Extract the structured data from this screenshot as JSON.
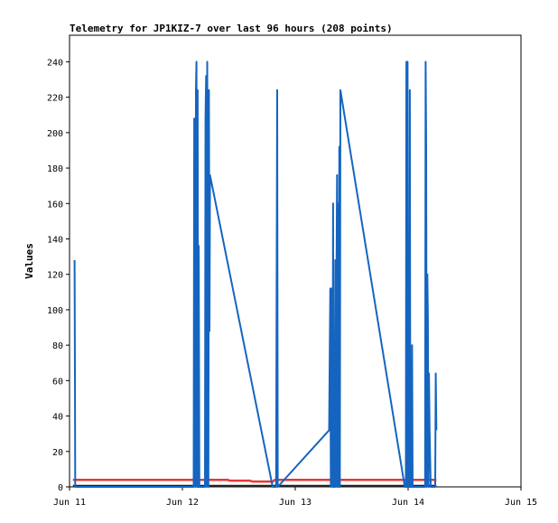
{
  "chart_data": {
    "type": "line",
    "title": "Telemetry for JP1KIZ-7 over last 96 hours (208 points)",
    "xlabel": "",
    "ylabel": "Values",
    "xlim": [
      "Jun 11",
      "Jun 15"
    ],
    "ylim": [
      0,
      255
    ],
    "x_ticks": [
      "Jun 11",
      "Jun 12",
      "Jun 13",
      "Jun 14",
      "Jun 15"
    ],
    "y_ticks": [
      0,
      20,
      40,
      60,
      80,
      100,
      120,
      140,
      160,
      180,
      200,
      220,
      240
    ],
    "grid": false,
    "legend": "none",
    "x_unit": "days",
    "series": [
      {
        "color": "#1565c0",
        "points": [
          [
            0.045,
            128
          ],
          [
            0.048,
            64
          ],
          [
            0.05,
            0
          ],
          [
            1.1,
            0
          ],
          [
            1.105,
            208
          ],
          [
            1.11,
            120
          ],
          [
            1.115,
            0
          ],
          [
            1.12,
            224
          ],
          [
            1.125,
            240
          ],
          [
            1.13,
            0
          ],
          [
            1.135,
            224
          ],
          [
            1.14,
            0
          ],
          [
            1.145,
            136
          ],
          [
            1.15,
            0
          ],
          [
            1.2,
            0
          ],
          [
            1.205,
            208
          ],
          [
            1.21,
            232
          ],
          [
            1.215,
            0
          ],
          [
            1.22,
            240
          ],
          [
            1.225,
            120
          ],
          [
            1.23,
            0
          ],
          [
            1.235,
            224
          ],
          [
            1.24,
            88
          ],
          [
            1.245,
            176
          ],
          [
            1.8,
            0
          ],
          [
            1.83,
            0
          ],
          [
            1.835,
            112
          ],
          [
            1.84,
            224
          ],
          [
            1.845,
            0
          ],
          [
            2.3,
            32
          ],
          [
            2.31,
            112
          ],
          [
            2.315,
            0
          ],
          [
            2.32,
            112
          ],
          [
            2.33,
            0
          ],
          [
            2.335,
            160
          ],
          [
            2.34,
            0
          ],
          [
            2.35,
            0
          ],
          [
            2.355,
            128
          ],
          [
            2.36,
            0
          ],
          [
            2.365,
            112
          ],
          [
            2.37,
            176
          ],
          [
            2.375,
            0
          ],
          [
            2.38,
            160
          ],
          [
            2.385,
            0
          ],
          [
            2.39,
            192
          ],
          [
            2.395,
            0
          ],
          [
            2.4,
            224
          ],
          [
            2.97,
            0
          ],
          [
            2.98,
            0
          ],
          [
            2.985,
            240
          ],
          [
            2.99,
            0
          ],
          [
            2.995,
            240
          ],
          [
            3.0,
            0
          ],
          [
            3.005,
            96
          ],
          [
            3.01,
            0
          ],
          [
            3.015,
            224
          ],
          [
            3.02,
            0
          ],
          [
            3.03,
            0
          ],
          [
            3.035,
            80
          ],
          [
            3.04,
            0
          ],
          [
            3.15,
            0
          ],
          [
            3.155,
            240
          ],
          [
            3.16,
            192
          ],
          [
            3.165,
            0
          ],
          [
            3.17,
            120
          ],
          [
            3.175,
            96
          ],
          [
            3.18,
            0
          ],
          [
            3.185,
            64
          ],
          [
            3.19,
            32
          ],
          [
            3.2,
            0
          ],
          [
            3.24,
            0
          ],
          [
            3.245,
            64
          ],
          [
            3.25,
            32
          ]
        ]
      },
      {
        "color": "#e53935",
        "points": [
          [
            0.03,
            4
          ],
          [
            1.4,
            4
          ],
          [
            1.42,
            3.5
          ],
          [
            1.6,
            3.5
          ],
          [
            1.62,
            3
          ],
          [
            1.8,
            3
          ],
          [
            1.82,
            4
          ],
          [
            3.25,
            4
          ]
        ]
      },
      {
        "color": "#222222",
        "points": [
          [
            0.03,
            0.5
          ],
          [
            3.25,
            0.5
          ]
        ]
      }
    ]
  }
}
